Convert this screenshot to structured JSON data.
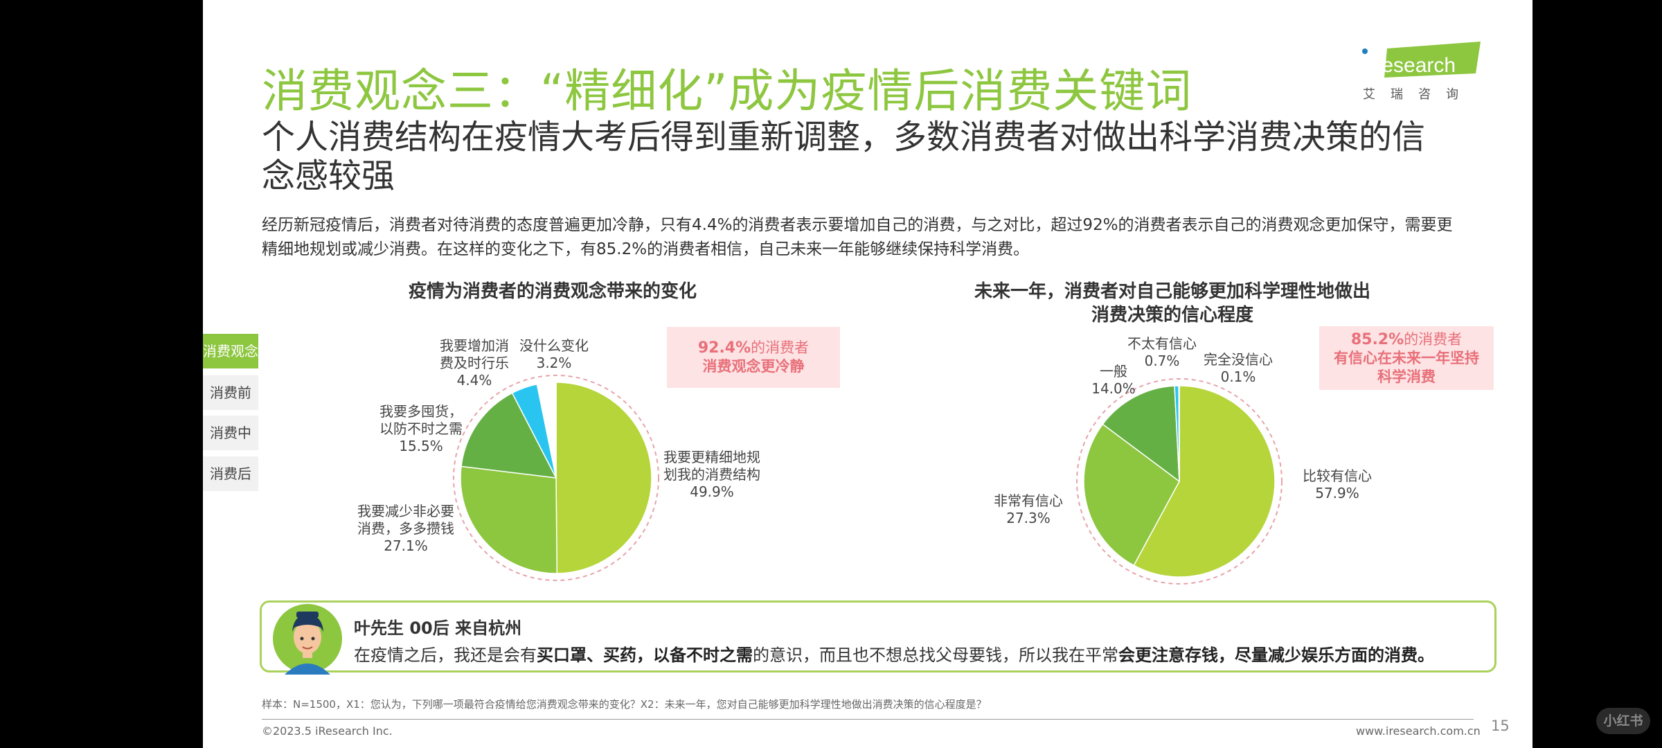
{
  "title": "消费观念三：“精细化”成为疫情后消费关键词",
  "subtitle": "个人消费结构在疫情大考后得到重新调整，多数消费者对做出科学消费决策的信念感较强",
  "description": "经历新冠疫情后，消费者对待消费的态度普遍更加冷静，只有4.4%的消费者表示要增加自己的消费，与之对比，超过92%的消费者表示自己的消费观念更加保守，需要更精细地规划或减少消费。在这样的变化之下，有85.2%的消费者相信，自己未来一年能够继续保持科学消费。",
  "logo": {
    "text": "iResearch",
    "cn": "艾瑞咨询",
    "accent": "#8dc63f"
  },
  "sidebar": {
    "items": [
      {
        "label": "消费观念",
        "active": true
      },
      {
        "label": "消费前",
        "active": false
      },
      {
        "label": "消费中",
        "active": false
      },
      {
        "label": "消费后",
        "active": false
      }
    ]
  },
  "callouts": {
    "left": {
      "highlight": "92.4%",
      "line1_rest": "的消费者",
      "line2": "消费观念更冷静"
    },
    "right": {
      "highlight": "85.2%",
      "line1_rest": "的消费者",
      "line2": "有信心在未来一年坚持",
      "line3": "科学消费"
    }
  },
  "chart_data": [
    {
      "type": "pie",
      "title": "疫情为消费者的消费观念带来的变化",
      "slices": [
        {
          "label": "我要更精细地规划我的消费结构",
          "value": 49.9,
          "value_label": "49.9%",
          "color": "#b5d53a"
        },
        {
          "label": "我要减少非必要消费，多多攒钱",
          "value": 27.1,
          "value_label": "27.1%",
          "color": "#8dc63f"
        },
        {
          "label": "我要多囤货，以防不时之需",
          "value": 15.5,
          "value_label": "15.5%",
          "color": "#65b045"
        },
        {
          "label": "我要增加消费及时行乐",
          "value": 4.4,
          "value_label": "4.4%",
          "color": "#29c5f0"
        },
        {
          "label": "没什么变化",
          "value": 3.2,
          "value_label": "3.2%",
          "color": "#ffffff"
        }
      ]
    },
    {
      "type": "pie",
      "title": "未来一年，消费者对自己能够更加科学理性地做出消费决策的信心程度",
      "slices": [
        {
          "label": "比较有信心",
          "value": 57.9,
          "value_label": "57.9%",
          "color": "#b5d53a"
        },
        {
          "label": "非常有信心",
          "value": 27.3,
          "value_label": "27.3%",
          "color": "#8dc63f"
        },
        {
          "label": "一般",
          "value": 14.0,
          "value_label": "14.0%",
          "color": "#65b045"
        },
        {
          "label": "不太有信心",
          "value": 0.7,
          "value_label": "0.7%",
          "color": "#29c5f0"
        },
        {
          "label": "完全没信心",
          "value": 0.1,
          "value_label": "0.1%",
          "color": "#8b5a9a"
        }
      ]
    }
  ],
  "quote": {
    "name": "叶先生 00后 来自杭州",
    "seg1": "在疫情之后，我还是会有",
    "seg2": "买口罩、买药，以备不时之需",
    "seg3": "的意识，而且也不想总找父母要钱，所以我在平常",
    "seg4": "会更注意存钱，尽量减少娱乐方面的消费。"
  },
  "footnote": "样本：N=1500，X1：您认为，下列哪一项最符合疫情给您消费观念带来的变化？X2：未来一年，您对自己能够更加科学理性地做出消费决策的信心程度是？",
  "footer": {
    "left": "©2023.5 iResearch Inc.",
    "right": "www.iresearch.com.cn",
    "page": "15"
  },
  "watermark": "小红书"
}
